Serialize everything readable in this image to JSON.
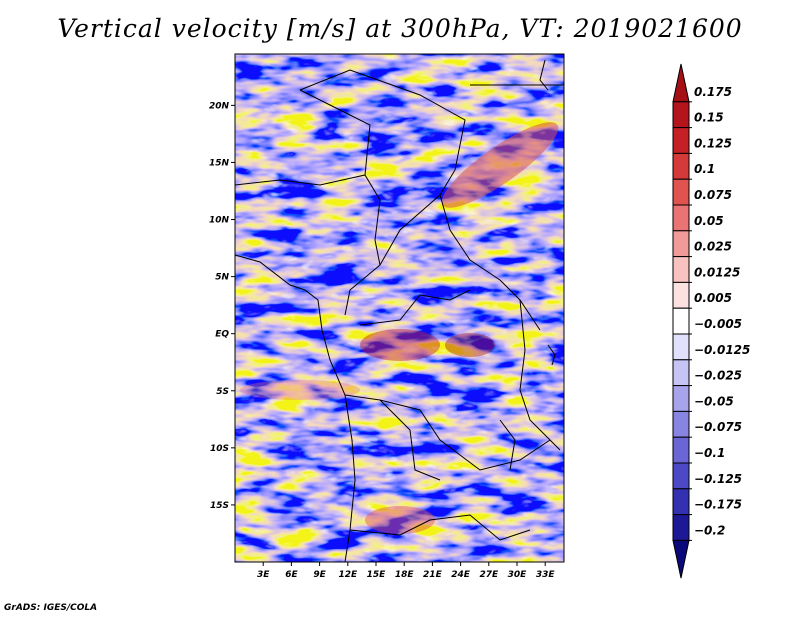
{
  "title": "Vertical velocity [m/s] at 300hPa, VT: 2019021600",
  "credit": "GrADS: IGES/COLA",
  "map": {
    "lat_labels": [
      "20N",
      "15N",
      "10N",
      "5N",
      "EQ",
      "5S",
      "10S",
      "15S"
    ],
    "lat_values": [
      20,
      15,
      10,
      5,
      0,
      -5,
      -10,
      -15
    ],
    "lon_labels": [
      "3E",
      "6E",
      "9E",
      "12E",
      "15E",
      "18E",
      "21E",
      "24E",
      "27E",
      "30E",
      "33E"
    ],
    "lon_values": [
      3,
      6,
      9,
      12,
      15,
      18,
      21,
      24,
      27,
      30,
      33
    ],
    "lat_range": [
      -20,
      24.5
    ],
    "lon_range": [
      0,
      35
    ]
  },
  "colorbar": {
    "labels": [
      "0.175",
      "0.15",
      "0.125",
      "0.1",
      "0.075",
      "0.05",
      "0.025",
      "0.0125",
      "0.005",
      "−0.005",
      "−0.0125",
      "−0.025",
      "−0.05",
      "−0.075",
      "−0.1",
      "−0.125",
      "−0.175",
      "−0.2"
    ],
    "colors": [
      "#a50f15",
      "#b4151c",
      "#c52026",
      "#d43a3a",
      "#e0534f",
      "#ea7373",
      "#f19b98",
      "#f7c2c0",
      "#fbe1e0",
      "#ffffff",
      "#e2e1fb",
      "#c6c4f4",
      "#a7a4ec",
      "#8784e2",
      "#6a66d6",
      "#4c48c6",
      "#3430b2",
      "#1c1896",
      "#0b087a"
    ]
  }
}
